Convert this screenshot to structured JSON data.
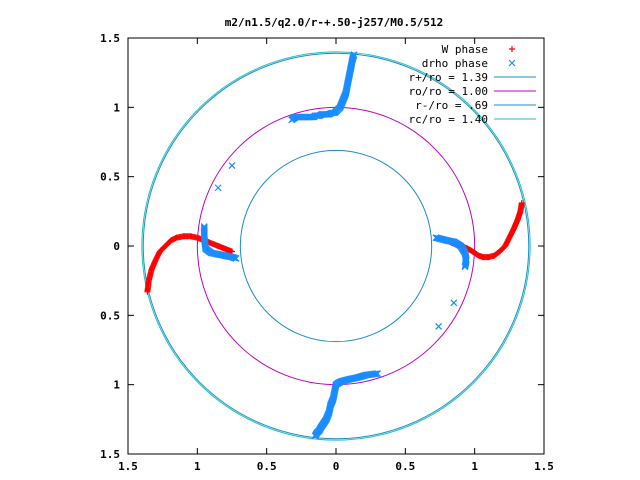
{
  "chart_data": {
    "type": "scatter",
    "title": "m2/n1.5/q2.0/r-+.50-j257/M0.5/512",
    "xlim": [
      -1.5,
      1.5
    ],
    "ylim": [
      -1.5,
      1.5
    ],
    "xticks": [
      -1.5,
      -1,
      -0.5,
      0,
      0.5,
      1,
      1.5
    ],
    "yticks": [
      -1.5,
      -1,
      -0.5,
      0,
      0.5,
      1,
      1.5
    ],
    "xtick_labels": [
      "1.5",
      "1",
      "0.5",
      "0",
      "0.5",
      "1",
      "1.5"
    ],
    "ytick_labels": [
      "1.5",
      "1",
      "0.5",
      "0",
      "0.5",
      "1",
      "1.5"
    ],
    "grid": false,
    "legend_position": "top-right",
    "colors": {
      "W phase": "#ff0000",
      "drho phase": "#1a8cff",
      "r+/ro = 1.39": "#1a8cc8",
      "ro/ro = 1.00": "#c000c0",
      "r-/ro = .69": "#1a8cc8",
      "rc/ro = 1.40": "#20c0c0"
    },
    "series": [
      {
        "name": "W phase",
        "marker": "plus",
        "x": [
          -1.36,
          -1.35,
          -1.33,
          -1.3,
          -1.27,
          -1.23,
          -1.19,
          -1.15,
          -1.1,
          -1.05,
          -1.0,
          -0.95,
          -0.9,
          -0.85,
          -0.8,
          -0.75,
          1.34,
          1.33,
          1.31,
          1.28,
          1.25,
          1.22,
          1.18,
          1.14,
          1.1,
          1.06,
          1.03,
          1.0,
          0.97,
          0.93,
          0.88,
          0.84,
          0.8
        ],
        "y": [
          -0.33,
          -0.25,
          -0.17,
          -0.1,
          -0.04,
          0.0,
          0.04,
          0.06,
          0.07,
          0.07,
          0.06,
          0.04,
          0.02,
          0.0,
          -0.02,
          -0.04,
          0.31,
          0.25,
          0.19,
          0.12,
          0.06,
          0.0,
          -0.04,
          -0.07,
          -0.08,
          -0.08,
          -0.07,
          -0.05,
          -0.03,
          -0.01,
          0.01,
          0.02,
          0.04
        ]
      },
      {
        "name": "drho phase",
        "marker": "cross",
        "x": [
          0.13,
          0.12,
          0.11,
          0.1,
          0.09,
          0.08,
          0.07,
          0.05,
          0.03,
          0.0,
          -0.01,
          -0.03,
          -0.05,
          -0.07,
          -0.1,
          -0.12,
          -0.14,
          -0.15,
          -0.16,
          -0.17,
          -0.2,
          -0.24,
          -0.29,
          -0.32,
          -0.75,
          -0.85,
          -0.95,
          -0.95,
          -0.94,
          -0.9,
          -0.85,
          -0.8,
          -0.75,
          -0.72,
          0.72,
          0.76,
          0.8,
          0.85,
          0.9,
          0.93,
          0.94,
          0.93,
          0.85,
          0.74,
          0.3,
          0.22,
          0.15,
          0.1,
          0.06,
          0.03,
          0.0,
          -0.01,
          -0.02,
          -0.04,
          -0.05,
          -0.07,
          -0.09,
          -0.11,
          -0.12,
          -0.13,
          -0.14,
          -0.15
        ],
        "y": [
          1.38,
          1.35,
          1.3,
          1.25,
          1.2,
          1.15,
          1.1,
          1.05,
          1.0,
          0.97,
          0.96,
          0.96,
          0.95,
          0.95,
          0.95,
          0.94,
          0.94,
          0.94,
          0.93,
          0.93,
          0.93,
          0.93,
          0.93,
          0.91,
          0.58,
          0.42,
          0.14,
          0.06,
          -0.02,
          -0.05,
          -0.06,
          -0.07,
          -0.08,
          -0.09,
          0.06,
          0.05,
          0.04,
          0.03,
          0.0,
          -0.05,
          -0.1,
          -0.15,
          -0.41,
          -0.58,
          -0.92,
          -0.93,
          -0.95,
          -0.96,
          -0.97,
          -0.98,
          -1.0,
          -1.05,
          -1.1,
          -1.15,
          -1.2,
          -1.25,
          -1.28,
          -1.31,
          -1.33,
          -1.34,
          -1.35,
          -1.37
        ]
      },
      {
        "name": "r+/ro = 1.39",
        "shape": "circle",
        "radius": 1.39
      },
      {
        "name": "ro/ro = 1.00",
        "shape": "circle",
        "radius": 1.0
      },
      {
        "name": "r-/ro = .69",
        "shape": "circle",
        "radius": 0.69
      },
      {
        "name": "rc/ro = 1.40",
        "shape": "circle",
        "radius": 1.4
      }
    ]
  }
}
